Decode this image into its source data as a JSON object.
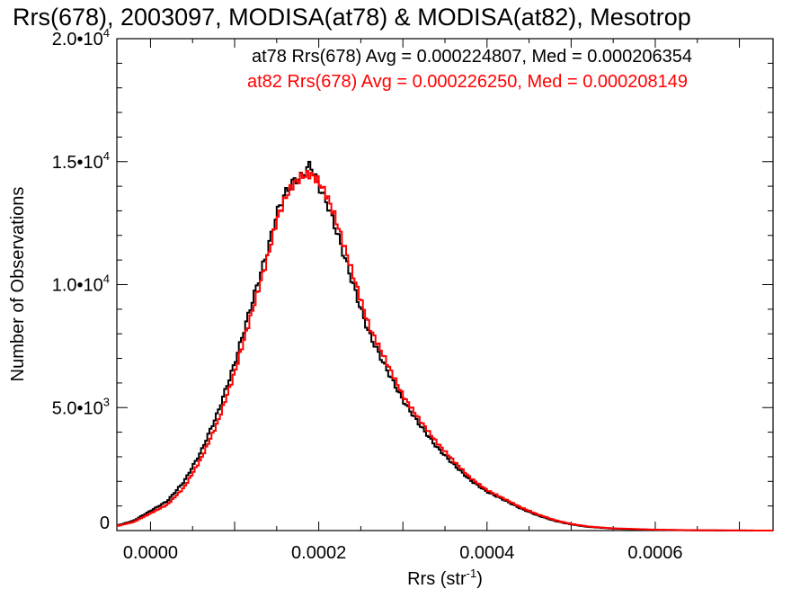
{
  "chart_data": {
    "type": "line",
    "title": "Rrs(678), 2003097, MODISA(at78) & MODISA(at82), Mesotrop",
    "xlabel": "Rrs (str",
    "xlabel_sup": "-1",
    "xlabel_close": ")",
    "ylabel": "Number of Observations",
    "xlim": [
      -4e-05,
      0.00074
    ],
    "ylim": [
      0,
      20000
    ],
    "x_ticks": [
      {
        "value": 0.0,
        "label": "0.0000"
      },
      {
        "value": 0.0002,
        "label": "0.0002"
      },
      {
        "value": 0.0004,
        "label": "0.0004"
      },
      {
        "value": 0.0006,
        "label": "0.0006"
      }
    ],
    "y_ticks": [
      {
        "value": 0,
        "label": "0",
        "sup": ""
      },
      {
        "value": 5000,
        "label": "5.0•10",
        "sup": "3"
      },
      {
        "value": 10000,
        "label": "1.0•10",
        "sup": "4"
      },
      {
        "value": 15000,
        "label": "1.5•10",
        "sup": "4"
      },
      {
        "value": 20000,
        "label": "2.0•10",
        "sup": "4"
      }
    ],
    "x_minor_step": 5e-05,
    "y_minor_step": 1000,
    "grid": false,
    "legend_position": "top-right",
    "series": [
      {
        "name": "at78",
        "color": "#000000",
        "legend_text": "at78 Rrs(678) Avg = 0.000224807, Med = 0.000206354",
        "x": [
          -4e-05,
          -2e-05,
          0.0,
          2e-05,
          4e-05,
          6e-05,
          8e-05,
          0.0001,
          0.00012,
          0.00014,
          0.00015,
          0.00016,
          0.00017,
          0.00018,
          0.00019,
          0.0002,
          0.00021,
          0.00022,
          0.00023,
          0.00024,
          0.00025,
          0.00026,
          0.00028,
          0.0003,
          0.00032,
          0.00034,
          0.00036,
          0.00038,
          0.0004,
          0.00042,
          0.00044,
          0.00046,
          0.00048,
          0.0005,
          0.00052,
          0.00055,
          0.0006,
          0.00065,
          0.0007,
          0.00074
        ],
        "y": [
          200,
          400,
          800,
          1200,
          2000,
          3200,
          4800,
          6800,
          9200,
          11500,
          12900,
          13700,
          14200,
          14400,
          14900,
          14000,
          13300,
          12300,
          11200,
          10100,
          9000,
          8000,
          6600,
          5300,
          4300,
          3400,
          2700,
          2050,
          1580,
          1250,
          900,
          620,
          400,
          250,
          150,
          80,
          30,
          10,
          3,
          0
        ]
      },
      {
        "name": "at82",
        "color": "#ff0000",
        "legend_text": "at82 Rrs(678) Avg = 0.000226250, Med = 0.000208149",
        "x": [
          -4e-05,
          -2e-05,
          0.0,
          2e-05,
          4e-05,
          6e-05,
          8e-05,
          0.0001,
          0.00012,
          0.00014,
          0.00015,
          0.00016,
          0.00017,
          0.00018,
          0.00019,
          0.0002,
          0.00021,
          0.00022,
          0.00023,
          0.00024,
          0.00025,
          0.00026,
          0.00028,
          0.0003,
          0.00032,
          0.00034,
          0.00036,
          0.00038,
          0.0004,
          0.00042,
          0.00044,
          0.00046,
          0.00048,
          0.0005,
          0.00052,
          0.00055,
          0.0006,
          0.00065,
          0.0007,
          0.00074
        ],
        "y": [
          180,
          350,
          700,
          1050,
          1750,
          2900,
          4400,
          6400,
          8800,
          11200,
          12600,
          13500,
          14100,
          14400,
          14500,
          14200,
          13600,
          12700,
          11600,
          10500,
          9400,
          8300,
          6900,
          5500,
          4500,
          3600,
          2850,
          2150,
          1650,
          1300,
          950,
          660,
          430,
          270,
          165,
          90,
          35,
          12,
          4,
          0
        ]
      }
    ]
  }
}
